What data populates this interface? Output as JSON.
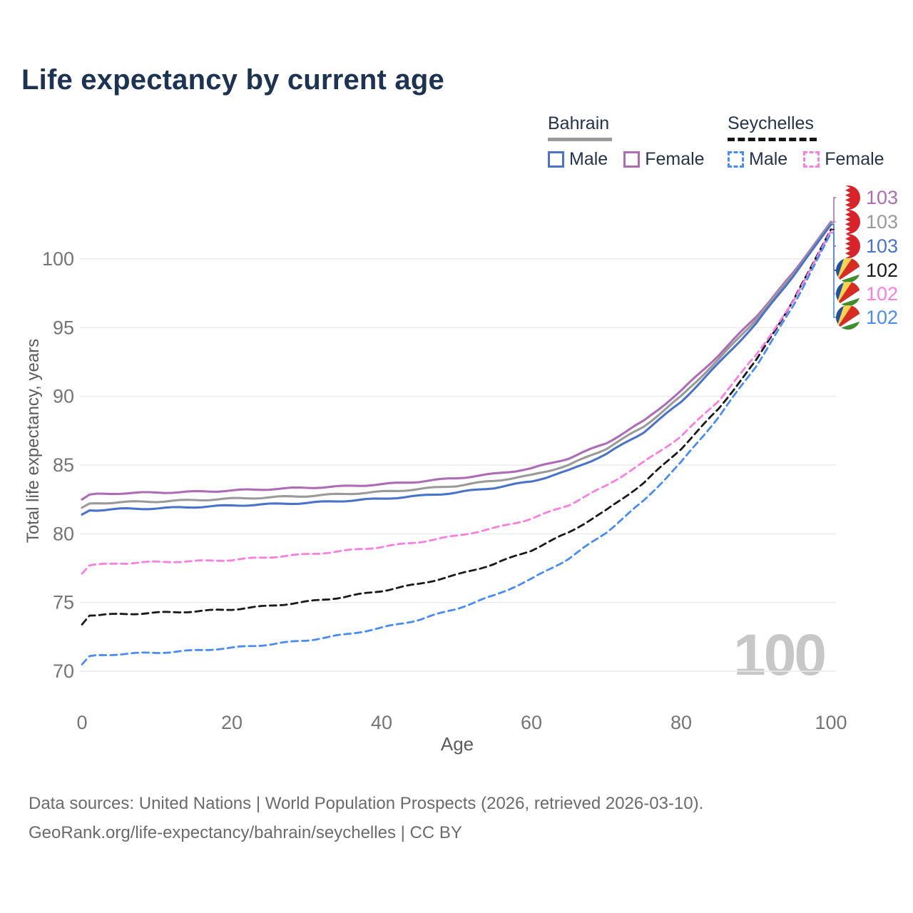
{
  "title": "Life expectancy by current age",
  "watermark": "100",
  "legend": {
    "groups": [
      {
        "name": "Bahrain",
        "underline_style": "solid",
        "underline_color": "#9a9a9a",
        "items": [
          {
            "label": "Male",
            "color": "#4a74c9",
            "dash": false
          },
          {
            "label": "Female",
            "color": "#ae6cb7",
            "dash": false
          }
        ]
      },
      {
        "name": "Seychelles",
        "underline_style": "dashed",
        "underline_color": "#161616",
        "items": [
          {
            "label": "Male",
            "color": "#4a8cf7",
            "dash": true
          },
          {
            "label": "Female",
            "color": "#fb7fe3",
            "dash": true
          }
        ]
      }
    ]
  },
  "axes": {
    "x_label": "Age",
    "y_label": "Total life expectancy, years",
    "x_ticks": [
      0,
      20,
      40,
      60,
      80,
      100
    ],
    "y_ticks": [
      70,
      75,
      80,
      85,
      90,
      95,
      100
    ]
  },
  "footer": {
    "line1": "Data sources: United Nations | World Population Prospects (2026, retrieved 2026-03-10).",
    "line2": "GeoRank.org/life-expectancy/bahrain/seychelles | CC BY"
  },
  "colors": {
    "title_text": "#1c3353",
    "legend_text": "#24344d",
    "grid": "#ebebeb",
    "tick_text": "#757575",
    "axis_title_text": "#5c5c5c",
    "watermark_text": "#c7c7c7",
    "footer_text": "#6b6b6b",
    "bahrain_flag_red": "#d8232a",
    "seychelles_blue": "#1e52a0",
    "seychelles_yellow": "#fcd34d",
    "seychelles_red": "#d92b21",
    "seychelles_green": "#3f8f29"
  },
  "chart_data": {
    "type": "line",
    "title": "Life expectancy by current age",
    "xlabel": "Age",
    "ylabel": "Total life expectancy, years",
    "xlim": [
      0,
      100
    ],
    "ylim": [
      70,
      103
    ],
    "grid": "horizontal-only",
    "legend_position": "top-right",
    "x": [
      0,
      1,
      5,
      10,
      15,
      20,
      25,
      30,
      35,
      40,
      45,
      50,
      55,
      60,
      65,
      70,
      75,
      80,
      85,
      90,
      95,
      100
    ],
    "series": [
      {
        "name": "Bahrain Female",
        "country": "Bahrain",
        "sex": "Female",
        "color": "#ae6cb7",
        "dash": false,
        "end_label": "103",
        "values": [
          82.5,
          82.85,
          82.95,
          83.0,
          83.05,
          83.15,
          83.25,
          83.35,
          83.45,
          83.6,
          83.8,
          84.05,
          84.35,
          84.75,
          85.5,
          86.6,
          88.2,
          90.4,
          93.0,
          95.8,
          99.0,
          102.7
        ]
      },
      {
        "name": "Bahrain Both sexes",
        "country": "Bahrain",
        "sex": "Both",
        "color": "#9a9a9a",
        "dash": false,
        "end_label": "103",
        "values": [
          81.9,
          82.2,
          82.3,
          82.35,
          82.45,
          82.55,
          82.65,
          82.75,
          82.9,
          83.05,
          83.25,
          83.5,
          83.85,
          84.25,
          85.0,
          86.2,
          87.8,
          90.0,
          92.7,
          95.6,
          98.9,
          102.6
        ]
      },
      {
        "name": "Bahrain Male",
        "country": "Bahrain",
        "sex": "Male",
        "color": "#4a74c9",
        "dash": false,
        "end_label": "103",
        "values": [
          81.4,
          81.7,
          81.8,
          81.85,
          81.95,
          82.05,
          82.15,
          82.25,
          82.4,
          82.55,
          82.75,
          83.0,
          83.35,
          83.8,
          84.6,
          85.8,
          87.4,
          89.6,
          92.4,
          95.3,
          98.8,
          102.5
        ]
      },
      {
        "name": "Seychelles Both sexes",
        "country": "Seychelles",
        "sex": "Both",
        "color": "#1a1a1a",
        "dash": true,
        "end_label": "102",
        "values": [
          73.4,
          74.05,
          74.15,
          74.25,
          74.35,
          74.5,
          74.75,
          75.05,
          75.4,
          75.85,
          76.35,
          77.0,
          77.8,
          78.8,
          80.1,
          81.7,
          83.7,
          86.2,
          89.1,
          92.6,
          97.0,
          102.15
        ]
      },
      {
        "name": "Seychelles Female",
        "country": "Seychelles",
        "sex": "Female",
        "color": "#fb7fe3",
        "dash": true,
        "end_label": "102",
        "values": [
          77.1,
          77.7,
          77.85,
          77.95,
          78.0,
          78.1,
          78.3,
          78.5,
          78.75,
          79.05,
          79.4,
          79.85,
          80.4,
          81.1,
          82.1,
          83.5,
          85.2,
          87.1,
          89.7,
          93.0,
          96.9,
          102.05
        ]
      },
      {
        "name": "Seychelles Male",
        "country": "Seychelles",
        "sex": "Male",
        "color": "#4a8cf7",
        "dash": true,
        "end_label": "102",
        "values": [
          70.5,
          71.1,
          71.25,
          71.35,
          71.5,
          71.7,
          71.95,
          72.25,
          72.65,
          73.15,
          73.75,
          74.55,
          75.5,
          76.7,
          78.2,
          80.1,
          82.4,
          85.2,
          88.5,
          92.2,
          96.6,
          101.9
        ]
      }
    ]
  }
}
